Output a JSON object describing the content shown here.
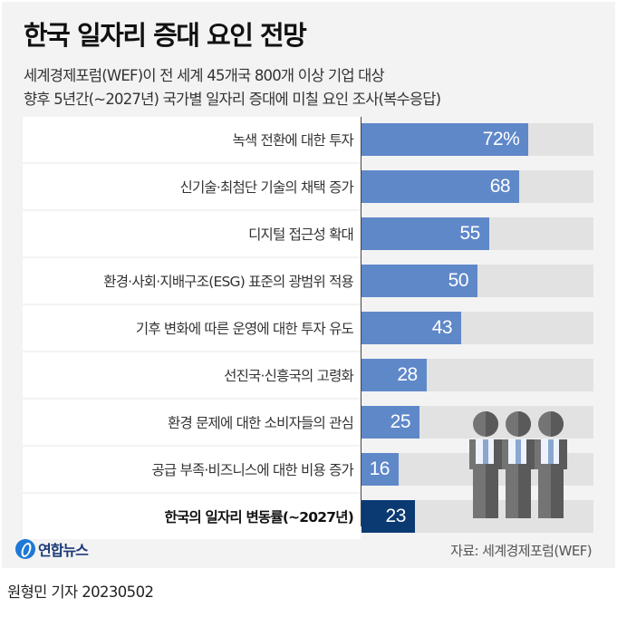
{
  "header": {
    "title": "한국 일자리 증대 요인 전망",
    "subtitle_line1": "세계경제포럼(WEF)이 전 세계 45개국 800개 이상 기업 대상",
    "subtitle_line2": "향후 5년간(~2027년) 국가별 일자리 증대에 미칠 요인 조사(복수응답)"
  },
  "colors": {
    "bar": "#5f88c9",
    "bar_highlight": "#0b3a73",
    "track": "#e2e2e2",
    "panel": "#f3f3f3",
    "label_bg": "#ffffff"
  },
  "chart_data": {
    "type": "bar",
    "orientation": "horizontal",
    "title": "한국 일자리 증대 요인 전망",
    "unit": "%",
    "xlabel": "",
    "ylabel": "",
    "xlim": [
      0,
      100
    ],
    "grid": false,
    "legend": null,
    "categories": [
      "녹색 전환에 대한 투자",
      "신기술·최첨단 기술의 채택 증가",
      "디지털 접근성 확대",
      "환경·사회·지배구조(ESG) 표준의 광범위 적용",
      "기후 변화에 따른 운영에 대한 투자 유도",
      "선진국·신흥국의 고령화",
      "환경 문제에 대한 소비자들의 관심",
      "공급 부족·비즈니스에 대한 비용 증가",
      "한국의 일자리 변동률(~2027년)"
    ],
    "values": [
      72,
      68,
      55,
      50,
      43,
      28,
      25,
      16,
      23
    ],
    "value_labels": [
      "72%",
      "68",
      "55",
      "50",
      "43",
      "28",
      "25",
      "16",
      "23"
    ],
    "highlighted_index": 8
  },
  "footer": {
    "logo_text": "연합뉴스",
    "source": "자료: 세계경제포럼(WEF)",
    "byline": "원형민 기자  20230502"
  }
}
